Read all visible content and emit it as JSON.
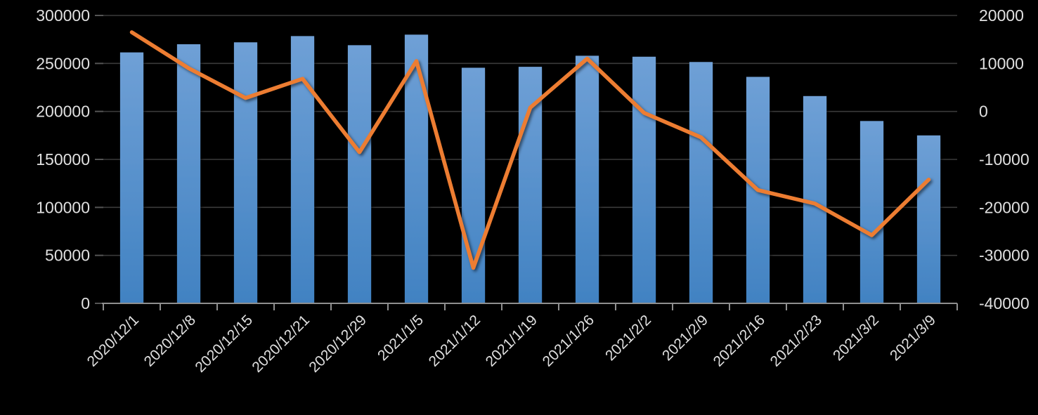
{
  "chart_data": {
    "type": "combo",
    "title": "",
    "legend": "none",
    "grid": true,
    "categories": [
      "2020/12/1",
      "2020/12/8",
      "2020/12/15",
      "2020/12/21",
      "2020/12/29",
      "2021/1/5",
      "2021/1/12",
      "2021/1/19",
      "2021/1/26",
      "2021/2/2",
      "2021/2/9",
      "2021/2/16",
      "2021/2/23",
      "2021/3/2",
      "2021/3/9"
    ],
    "series": [
      {
        "id": "bar-series",
        "type": "bar",
        "axis": "left",
        "values": [
          261500,
          270000,
          272000,
          278500,
          269000,
          280000,
          245500,
          246500,
          258000,
          257000,
          251500,
          236000,
          216000,
          190000,
          175000
        ]
      },
      {
        "id": "line-series",
        "type": "line",
        "axis": "right",
        "values": [
          16500,
          9000,
          2800,
          6800,
          -8500,
          10500,
          -32600,
          800,
          11000,
          -300,
          -5400,
          -16400,
          -19200,
          -25800,
          -14200
        ]
      }
    ],
    "y_left": {
      "min": 0,
      "max": 300000,
      "tick_step": 50000,
      "tick_labels": [
        "0",
        "50000",
        "100000",
        "150000",
        "200000",
        "250000",
        "300000"
      ]
    },
    "y_right": {
      "min": -40000,
      "max": 20000,
      "tick_step": 10000,
      "tick_labels": [
        "-40000",
        "-30000",
        "-20000",
        "-10000",
        "0",
        "10000",
        "20000"
      ]
    },
    "colors": {
      "background": "#000000",
      "bar_top": "#6FA0D6",
      "bar_bottom": "#4182C2",
      "line": "#ED7D31",
      "text": "#E0E0E0",
      "gridline": "#3A3A3A",
      "tick": "#555555",
      "axis": "#8F8F8F"
    }
  }
}
